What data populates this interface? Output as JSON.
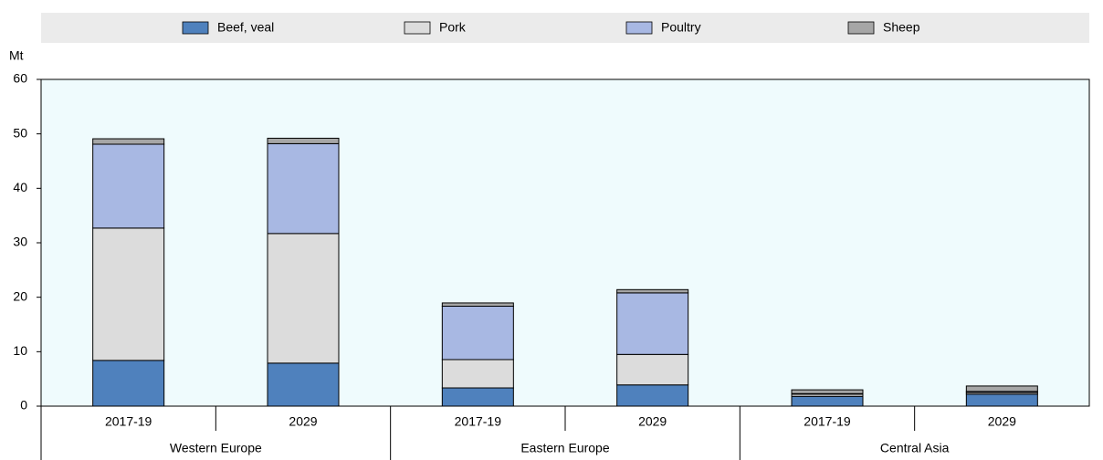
{
  "chart_data": {
    "type": "stacked-bar",
    "y_unit": "Mt",
    "categories": [
      "2017-19",
      "2029",
      "2017-19",
      "2029",
      "2017-19",
      "2029"
    ],
    "groups": [
      "Western Europe",
      "Eastern Europe",
      "Central Asia"
    ],
    "series": [
      {
        "name": "Beef, veal",
        "color": "#4f81bd",
        "values": [
          8.4,
          7.9,
          3.35,
          3.9,
          1.8,
          2.2
        ]
      },
      {
        "name": "Pork",
        "color": "#dcdcdc",
        "values": [
          24.3,
          23.8,
          5.2,
          5.6,
          0.4,
          0.3
        ]
      },
      {
        "name": "Poultry",
        "color": "#a8b8e3",
        "values": [
          15.4,
          16.5,
          9.8,
          11.3,
          0.1,
          0.2
        ]
      },
      {
        "name": "Sheep",
        "color": "#a6a6a6",
        "values": [
          1.0,
          1.0,
          0.6,
          0.6,
          0.7,
          1.0
        ]
      }
    ],
    "ylim": [
      0,
      60
    ],
    "yticks": [
      0,
      10,
      20,
      30,
      40,
      50,
      60
    ],
    "grid": false,
    "legend": "top",
    "plot_background": "#effbfd"
  }
}
